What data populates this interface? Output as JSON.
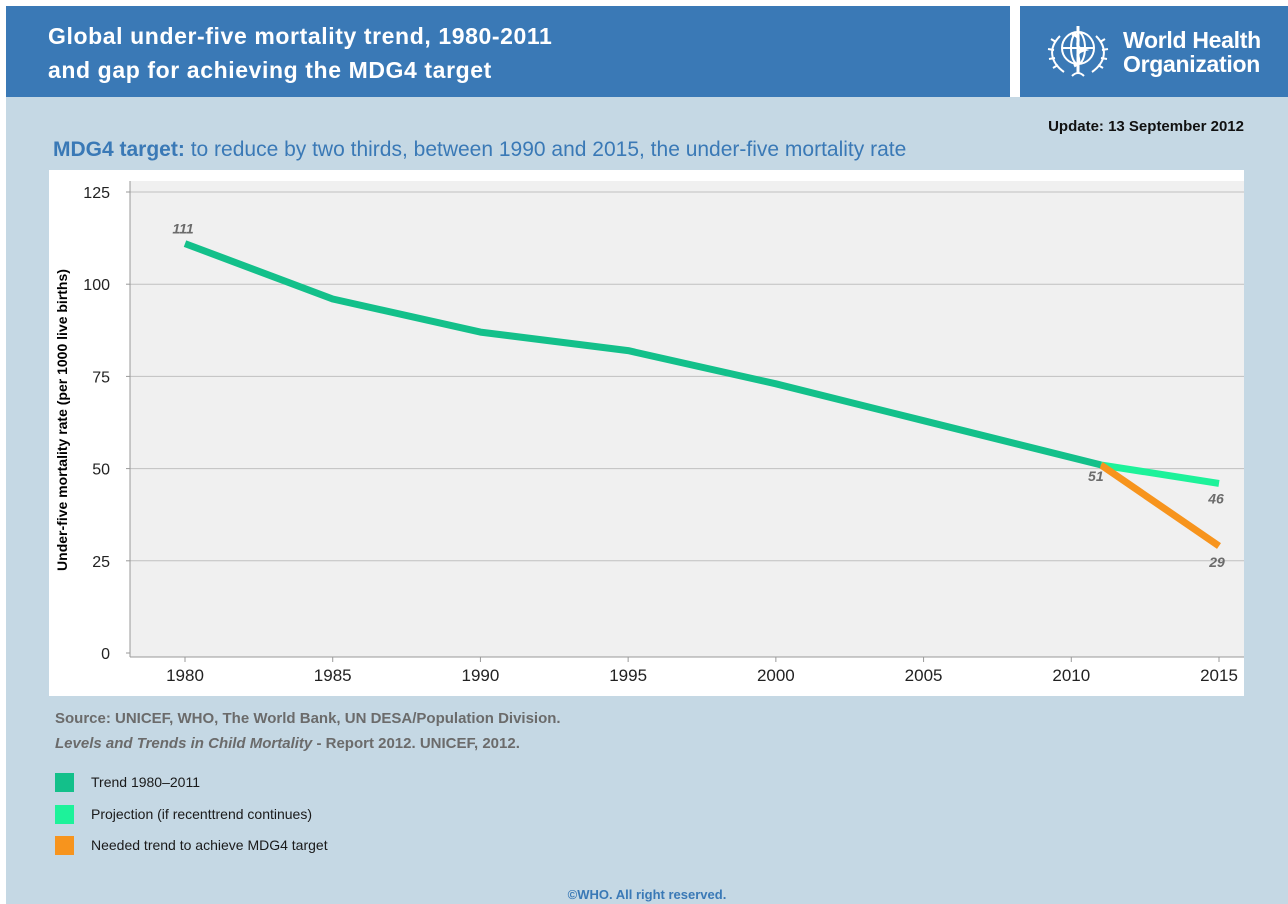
{
  "header": {
    "title_line1": "Global under-five mortality trend, 1980-2011",
    "title_line2": "and gap for achieving the MDG4 target",
    "org_name_line1": "World Health",
    "org_name_line2": "Organization"
  },
  "update": "Update: 13 September 2012",
  "target": {
    "label": "MDG4 target:",
    "text": " to reduce by two thirds, between 1990 and 2015, the under-five mortality rate"
  },
  "source": {
    "line1": "Source: UNICEF, WHO, The World Bank, UN DESA/Population Division.",
    "line2_italic": "Levels and Trends in Child Mortality",
    "line2_rest": " - Report 2012. UNICEF, 2012."
  },
  "legend": [
    {
      "label": "Trend 1980–2011",
      "color": "#13c08a"
    },
    {
      "label": "Projection (if recenttrend continues)",
      "color": "#1df29a"
    },
    {
      "label": "Needed trend to achieve MDG4 target",
      "color": "#f7941d"
    }
  ],
  "copyright": "©WHO. All right reserved.",
  "chart_data": {
    "type": "line",
    "ylabel": "Under-five mortality rate (per 1000 live births)",
    "xlabel": "",
    "xlim": [
      1980,
      2015
    ],
    "ylim": [
      0,
      125
    ],
    "xticks": [
      1980,
      1985,
      1990,
      1995,
      2000,
      2005,
      2010,
      2015
    ],
    "yticks": [
      0,
      25,
      50,
      75,
      100,
      125
    ],
    "grid": true,
    "series": [
      {
        "name": "Trend 1980–2011",
        "color": "#13c08a",
        "x": [
          1980,
          1985,
          1990,
          1995,
          2000,
          2005,
          2011
        ],
        "y": [
          111,
          96,
          87,
          82,
          73,
          63,
          51
        ]
      },
      {
        "name": "Projection (if recenttrend continues)",
        "color": "#1df29a",
        "x": [
          2011,
          2015
        ],
        "y": [
          51,
          46
        ]
      },
      {
        "name": "Needed trend to achieve MDG4 target",
        "color": "#f7941d",
        "x": [
          2011,
          2015
        ],
        "y": [
          51,
          29
        ]
      }
    ],
    "annotations": [
      {
        "x": 1980,
        "y": 111,
        "text": "111"
      },
      {
        "x": 2011,
        "y": 51,
        "text": "51"
      },
      {
        "x": 2015,
        "y": 46,
        "text": "46"
      },
      {
        "x": 2015,
        "y": 29,
        "text": "29"
      }
    ],
    "colors": {
      "plot_background": "#f0f0f0",
      "grid": "#c0c0c0",
      "annotation": "#6b6b6b"
    }
  }
}
